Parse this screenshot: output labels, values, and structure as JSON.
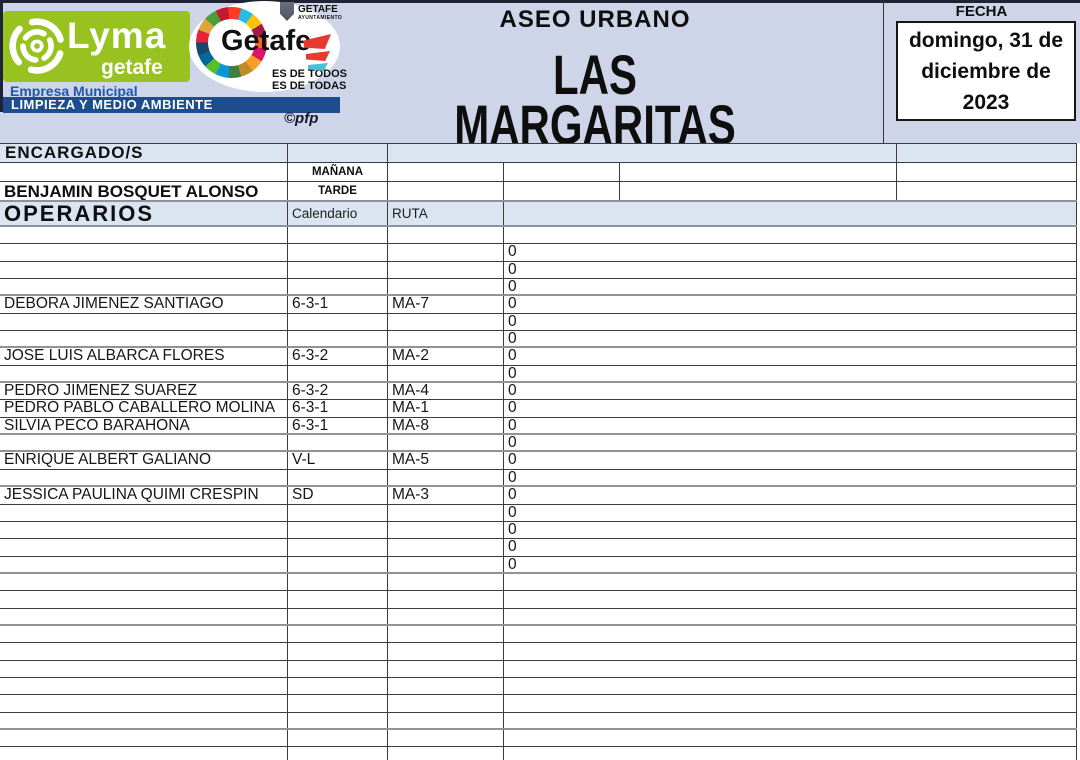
{
  "header": {
    "service_title": "ASEO URBANO",
    "zone_title": "LAS MARGARITAS",
    "fecha_label": "FECHA",
    "date_line_1": "domingo, 31 de",
    "date_line_2": "diciembre de",
    "date_line_3": "2023"
  },
  "branding": {
    "lyma_name": "Lyma",
    "lyma_sub": "getafe",
    "empresa": "Empresa Municipal",
    "bar_text": "LIMPIEZA Y MEDIO AMBIENTE",
    "copyright": "©pfp",
    "getafe_label": "Getafe",
    "crest_line_1": "GETAFE",
    "crest_line_2": "AYUNTAMIENTO",
    "tagline_line_1": "ES DE TODOS",
    "tagline_line_2": "ES DE TODAS",
    "colors": {
      "lyma_green": "#97c21f",
      "bar_blue": "#1d4c8f",
      "empresa_blue": "#1e5aa8",
      "header_bg": "#cfd5e9",
      "section_bg": "#dbe5f1",
      "accent_red": "#e63a2e",
      "accent_cyan": "#4cc0d5",
      "sdg_wheel": [
        "#e5243b",
        "#dda63a",
        "#4c9f38",
        "#c5192d",
        "#ff3a21",
        "#26bde2",
        "#fcc30b",
        "#a21942",
        "#fd6925",
        "#dd1367",
        "#fd9d24",
        "#bf8b2e",
        "#3f7e44",
        "#0a97d9",
        "#56c02b",
        "#00689d",
        "#19486a"
      ]
    }
  },
  "encargados": {
    "label": "ENCARGADO/S",
    "name": "BENJAMIN BOSQUET ALONSO",
    "shift_am": "MAÑANA",
    "shift_pm": "TARDE"
  },
  "operarios": {
    "label": "OPERARIOS",
    "calendario_header": "Calendario",
    "ruta_header": "RUTA",
    "rows": [
      {
        "name": "",
        "calendario": "",
        "ruta": "",
        "value": ""
      },
      {
        "name": "",
        "calendario": "",
        "ruta": "",
        "value": "0"
      },
      {
        "name": "",
        "calendario": "",
        "ruta": "",
        "value": "0"
      },
      {
        "name": "",
        "calendario": "",
        "ruta": "",
        "value": "0"
      },
      {
        "name": "DEBORA JIMENEZ SANTIAGO",
        "calendario": "6-3-1",
        "ruta": "MA-7",
        "value": "0"
      },
      {
        "name": "",
        "calendario": "",
        "ruta": "",
        "value": "0"
      },
      {
        "name": "",
        "calendario": "",
        "ruta": "",
        "value": "0"
      },
      {
        "name": "JOSE LUIS ALBARCA FLORES",
        "calendario": "6-3-2",
        "ruta": "MA-2",
        "value": "0"
      },
      {
        "name": "",
        "calendario": "",
        "ruta": "",
        "value": "0"
      },
      {
        "name": "PEDRO JIMENEZ SUAREZ",
        "calendario": "6-3-2",
        "ruta": "MA-4",
        "value": "0"
      },
      {
        "name": "PEDRO PABLO CABALLERO MOLINA",
        "calendario": "6-3-1",
        "ruta": "MA-1",
        "value": "0"
      },
      {
        "name": "SILVIA PECO BARAHONA",
        "calendario": "6-3-1",
        "ruta": "MA-8",
        "value": "0"
      },
      {
        "name": "",
        "calendario": "",
        "ruta": "",
        "value": "0"
      },
      {
        "name": "ENRIQUE ALBERT GALIANO",
        "calendario": "V-L",
        "ruta": "MA-5",
        "value": "0"
      },
      {
        "name": "",
        "calendario": "",
        "ruta": "",
        "value": "0"
      },
      {
        "name": "JESSICA PAULINA QUIMI CRESPIN",
        "calendario": "SD",
        "ruta": "MA-3",
        "value": "0"
      },
      {
        "name": "",
        "calendario": "",
        "ruta": "",
        "value": "0"
      },
      {
        "name": "",
        "calendario": "",
        "ruta": "",
        "value": "0"
      },
      {
        "name": "",
        "calendario": "",
        "ruta": "",
        "value": "0"
      },
      {
        "name": "",
        "calendario": "",
        "ruta": "",
        "value": "0"
      }
    ],
    "trailing_empty_rows": 11
  }
}
